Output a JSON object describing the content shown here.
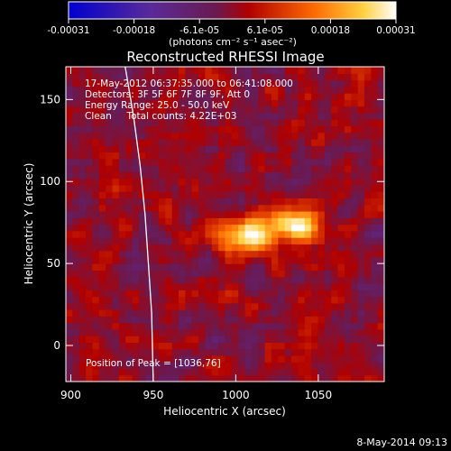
{
  "chart_data": {
    "type": "heatmap",
    "title": "Reconstructed RHESSI Image",
    "xlabel": "Heliocentric X (arcsec)",
    "ylabel": "Heliocentric Y (arcsec)",
    "xlim": [
      897,
      1090
    ],
    "ylim": [
      -22,
      170
    ],
    "x_ticks": [
      900,
      950,
      1000,
      1050
    ],
    "y_ticks": [
      0,
      50,
      100,
      150
    ],
    "colorbar": {
      "ticks": [
        "-0.00031",
        "-0.00018",
        "-6.1e-05",
        "6.1e-05",
        "0.00018",
        "0.00031"
      ],
      "unit_label": "(photons cm⁻² s⁻¹ asec⁻²)",
      "range": [
        -0.00031,
        0.00031
      ]
    },
    "annotations": [
      "17-May-2012 06:37:35.000 to 06:41:08.000",
      "Detectors: 3F 5F 6F 7F 8F 9F, Att 0",
      "Energy Range: 25.0 - 50.0 keV",
      "Clean     Total counts: 4.22E+03",
      "Position of Peak = [1036,76]"
    ],
    "peak": [
      1036,
      76
    ],
    "sources": [
      {
        "x": 1007,
        "y": 68,
        "peak": 0.00029
      },
      {
        "x": 1036,
        "y": 74,
        "peak": 0.00031
      }
    ],
    "limb_curve": [
      [
        933,
        170
      ],
      [
        938,
        140
      ],
      [
        942,
        110
      ],
      [
        945,
        80
      ],
      [
        947,
        50
      ],
      [
        949,
        20
      ],
      [
        950,
        -22
      ]
    ]
  },
  "footer": {
    "date": "8-May-2014 09:13"
  }
}
